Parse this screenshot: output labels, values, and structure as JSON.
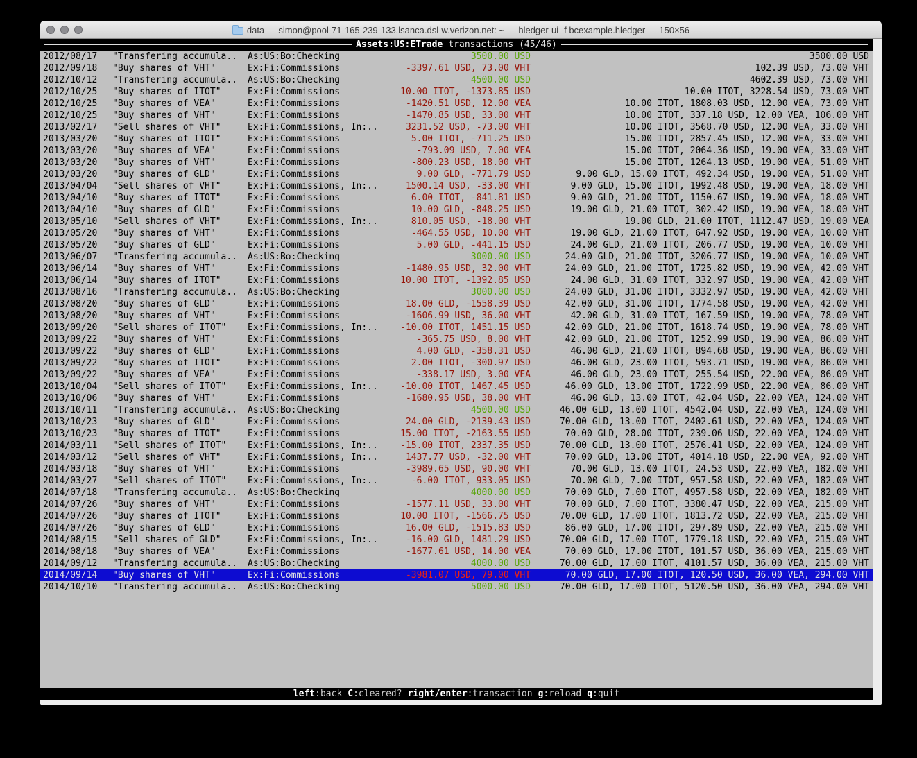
{
  "colors": {
    "terminal_background": "#c1c1c1",
    "negative_amount": "#961408",
    "positive_amount": "#55a302",
    "selection_background": "#0d0cd1",
    "selection_negative_amount": "#ee2211",
    "bar_background": "#000000",
    "bar_text": "#e6e6e6"
  },
  "window": {
    "title": "data — simon@pool-71-165-239-133.lsanca.dsl-w.verizon.net: ~ — hledger-ui -f bcexample.hledger — 150×56",
    "folder_icon": "folder-icon",
    "traffic_lights": [
      "close",
      "minimize",
      "zoom"
    ]
  },
  "tui_header": {
    "account": "Assets:US:ETrade",
    "suffix": "transactions (45/46)"
  },
  "statusbar": {
    "hints": [
      {
        "key": "left",
        "desc": ":back"
      },
      {
        "key": "C",
        "desc": ":cleared?"
      },
      {
        "key": "right/enter",
        "desc": ":transaction"
      },
      {
        "key": "g",
        "desc": ":reload"
      },
      {
        "key": "q",
        "desc": ":quit"
      }
    ]
  },
  "transactions": [
    {
      "date": "2012/08/17",
      "description": "\"Transfering accumula..",
      "account": "As:US:Bo:Checking",
      "change": "3500.00 USD",
      "change_color": "green",
      "balance": "3500.00 USD",
      "selected": false
    },
    {
      "date": "2012/09/18",
      "description": "\"Buy shares of VHT\"",
      "account": "Ex:Fi:Commissions",
      "change": "-3397.61 USD, 73.00 VHT",
      "change_color": "red",
      "balance": "102.39 USD, 73.00 VHT",
      "selected": false
    },
    {
      "date": "2012/10/12",
      "description": "\"Transfering accumula..",
      "account": "As:US:Bo:Checking",
      "change": "4500.00 USD",
      "change_color": "green",
      "balance": "4602.39 USD, 73.00 VHT",
      "selected": false
    },
    {
      "date": "2012/10/25",
      "description": "\"Buy shares of ITOT\"",
      "account": "Ex:Fi:Commissions",
      "change": "10.00 ITOT, -1373.85 USD",
      "change_color": "red",
      "balance": "10.00 ITOT, 3228.54 USD, 73.00 VHT",
      "selected": false
    },
    {
      "date": "2012/10/25",
      "description": "\"Buy shares of VEA\"",
      "account": "Ex:Fi:Commissions",
      "change": "-1420.51 USD, 12.00 VEA",
      "change_color": "red",
      "balance": "10.00 ITOT, 1808.03 USD, 12.00 VEA, 73.00 VHT",
      "selected": false
    },
    {
      "date": "2012/10/25",
      "description": "\"Buy shares of VHT\"",
      "account": "Ex:Fi:Commissions",
      "change": "-1470.85 USD, 33.00 VHT",
      "change_color": "red",
      "balance": "10.00 ITOT, 337.18 USD, 12.00 VEA, 106.00 VHT",
      "selected": false
    },
    {
      "date": "2013/02/17",
      "description": "\"Sell shares of VHT\"",
      "account": "Ex:Fi:Commissions, In:..",
      "change": "3231.52 USD, -73.00 VHT",
      "change_color": "red",
      "balance": "10.00 ITOT, 3568.70 USD, 12.00 VEA, 33.00 VHT",
      "selected": false
    },
    {
      "date": "2013/03/20",
      "description": "\"Buy shares of ITOT\"",
      "account": "Ex:Fi:Commissions",
      "change": "5.00 ITOT, -711.25 USD",
      "change_color": "red",
      "balance": "15.00 ITOT, 2857.45 USD, 12.00 VEA, 33.00 VHT",
      "selected": false
    },
    {
      "date": "2013/03/20",
      "description": "\"Buy shares of VEA\"",
      "account": "Ex:Fi:Commissions",
      "change": "-793.09 USD, 7.00 VEA",
      "change_color": "red",
      "balance": "15.00 ITOT, 2064.36 USD, 19.00 VEA, 33.00 VHT",
      "selected": false
    },
    {
      "date": "2013/03/20",
      "description": "\"Buy shares of VHT\"",
      "account": "Ex:Fi:Commissions",
      "change": "-800.23 USD, 18.00 VHT",
      "change_color": "red",
      "balance": "15.00 ITOT, 1264.13 USD, 19.00 VEA, 51.00 VHT",
      "selected": false
    },
    {
      "date": "2013/03/20",
      "description": "\"Buy shares of GLD\"",
      "account": "Ex:Fi:Commissions",
      "change": "9.00 GLD, -771.79 USD",
      "change_color": "red",
      "balance": "9.00 GLD, 15.00 ITOT, 492.34 USD, 19.00 VEA, 51.00 VHT",
      "selected": false
    },
    {
      "date": "2013/04/04",
      "description": "\"Sell shares of VHT\"",
      "account": "Ex:Fi:Commissions, In:..",
      "change": "1500.14 USD, -33.00 VHT",
      "change_color": "red",
      "balance": "9.00 GLD, 15.00 ITOT, 1992.48 USD, 19.00 VEA, 18.00 VHT",
      "selected": false
    },
    {
      "date": "2013/04/10",
      "description": "\"Buy shares of ITOT\"",
      "account": "Ex:Fi:Commissions",
      "change": "6.00 ITOT, -841.81 USD",
      "change_color": "red",
      "balance": "9.00 GLD, 21.00 ITOT, 1150.67 USD, 19.00 VEA, 18.00 VHT",
      "selected": false
    },
    {
      "date": "2013/04/10",
      "description": "\"Buy shares of GLD\"",
      "account": "Ex:Fi:Commissions",
      "change": "10.00 GLD, -848.25 USD",
      "change_color": "red",
      "balance": "19.00 GLD, 21.00 ITOT, 302.42 USD, 19.00 VEA, 18.00 VHT",
      "selected": false
    },
    {
      "date": "2013/05/10",
      "description": "\"Sell shares of VHT\"",
      "account": "Ex:Fi:Commissions, In:..",
      "change": "810.05 USD, -18.00 VHT",
      "change_color": "red",
      "balance": "19.00 GLD, 21.00 ITOT, 1112.47 USD, 19.00 VEA",
      "selected": false
    },
    {
      "date": "2013/05/20",
      "description": "\"Buy shares of VHT\"",
      "account": "Ex:Fi:Commissions",
      "change": "-464.55 USD, 10.00 VHT",
      "change_color": "red",
      "balance": "19.00 GLD, 21.00 ITOT, 647.92 USD, 19.00 VEA, 10.00 VHT",
      "selected": false
    },
    {
      "date": "2013/05/20",
      "description": "\"Buy shares of GLD\"",
      "account": "Ex:Fi:Commissions",
      "change": "5.00 GLD, -441.15 USD",
      "change_color": "red",
      "balance": "24.00 GLD, 21.00 ITOT, 206.77 USD, 19.00 VEA, 10.00 VHT",
      "selected": false
    },
    {
      "date": "2013/06/07",
      "description": "\"Transfering accumula..",
      "account": "As:US:Bo:Checking",
      "change": "3000.00 USD",
      "change_color": "green",
      "balance": "24.00 GLD, 21.00 ITOT, 3206.77 USD, 19.00 VEA, 10.00 VHT",
      "selected": false
    },
    {
      "date": "2013/06/14",
      "description": "\"Buy shares of VHT\"",
      "account": "Ex:Fi:Commissions",
      "change": "-1480.95 USD, 32.00 VHT",
      "change_color": "red",
      "balance": "24.00 GLD, 21.00 ITOT, 1725.82 USD, 19.00 VEA, 42.00 VHT",
      "selected": false
    },
    {
      "date": "2013/06/14",
      "description": "\"Buy shares of ITOT\"",
      "account": "Ex:Fi:Commissions",
      "change": "10.00 ITOT, -1392.85 USD",
      "change_color": "red",
      "balance": "24.00 GLD, 31.00 ITOT, 332.97 USD, 19.00 VEA, 42.00 VHT",
      "selected": false
    },
    {
      "date": "2013/08/16",
      "description": "\"Transfering accumula..",
      "account": "As:US:Bo:Checking",
      "change": "3000.00 USD",
      "change_color": "green",
      "balance": "24.00 GLD, 31.00 ITOT, 3332.97 USD, 19.00 VEA, 42.00 VHT",
      "selected": false
    },
    {
      "date": "2013/08/20",
      "description": "\"Buy shares of GLD\"",
      "account": "Ex:Fi:Commissions",
      "change": "18.00 GLD, -1558.39 USD",
      "change_color": "red",
      "balance": "42.00 GLD, 31.00 ITOT, 1774.58 USD, 19.00 VEA, 42.00 VHT",
      "selected": false
    },
    {
      "date": "2013/08/20",
      "description": "\"Buy shares of VHT\"",
      "account": "Ex:Fi:Commissions",
      "change": "-1606.99 USD, 36.00 VHT",
      "change_color": "red",
      "balance": "42.00 GLD, 31.00 ITOT, 167.59 USD, 19.00 VEA, 78.00 VHT",
      "selected": false
    },
    {
      "date": "2013/09/20",
      "description": "\"Sell shares of ITOT\"",
      "account": "Ex:Fi:Commissions, In:..",
      "change": "-10.00 ITOT, 1451.15 USD",
      "change_color": "red",
      "balance": "42.00 GLD, 21.00 ITOT, 1618.74 USD, 19.00 VEA, 78.00 VHT",
      "selected": false
    },
    {
      "date": "2013/09/22",
      "description": "\"Buy shares of VHT\"",
      "account": "Ex:Fi:Commissions",
      "change": "-365.75 USD, 8.00 VHT",
      "change_color": "red",
      "balance": "42.00 GLD, 21.00 ITOT, 1252.99 USD, 19.00 VEA, 86.00 VHT",
      "selected": false
    },
    {
      "date": "2013/09/22",
      "description": "\"Buy shares of GLD\"",
      "account": "Ex:Fi:Commissions",
      "change": "4.00 GLD, -358.31 USD",
      "change_color": "red",
      "balance": "46.00 GLD, 21.00 ITOT, 894.68 USD, 19.00 VEA, 86.00 VHT",
      "selected": false
    },
    {
      "date": "2013/09/22",
      "description": "\"Buy shares of ITOT\"",
      "account": "Ex:Fi:Commissions",
      "change": "2.00 ITOT, -300.97 USD",
      "change_color": "red",
      "balance": "46.00 GLD, 23.00 ITOT, 593.71 USD, 19.00 VEA, 86.00 VHT",
      "selected": false
    },
    {
      "date": "2013/09/22",
      "description": "\"Buy shares of VEA\"",
      "account": "Ex:Fi:Commissions",
      "change": "-338.17 USD, 3.00 VEA",
      "change_color": "red",
      "balance": "46.00 GLD, 23.00 ITOT, 255.54 USD, 22.00 VEA, 86.00 VHT",
      "selected": false
    },
    {
      "date": "2013/10/04",
      "description": "\"Sell shares of ITOT\"",
      "account": "Ex:Fi:Commissions, In:..",
      "change": "-10.00 ITOT, 1467.45 USD",
      "change_color": "red",
      "balance": "46.00 GLD, 13.00 ITOT, 1722.99 USD, 22.00 VEA, 86.00 VHT",
      "selected": false
    },
    {
      "date": "2013/10/06",
      "description": "\"Buy shares of VHT\"",
      "account": "Ex:Fi:Commissions",
      "change": "-1680.95 USD, 38.00 VHT",
      "change_color": "red",
      "balance": "46.00 GLD, 13.00 ITOT, 42.04 USD, 22.00 VEA, 124.00 VHT",
      "selected": false
    },
    {
      "date": "2013/10/11",
      "description": "\"Transfering accumula..",
      "account": "As:US:Bo:Checking",
      "change": "4500.00 USD",
      "change_color": "green",
      "balance": "46.00 GLD, 13.00 ITOT, 4542.04 USD, 22.00 VEA, 124.00 VHT",
      "selected": false
    },
    {
      "date": "2013/10/23",
      "description": "\"Buy shares of GLD\"",
      "account": "Ex:Fi:Commissions",
      "change": "24.00 GLD, -2139.43 USD",
      "change_color": "red",
      "balance": "70.00 GLD, 13.00 ITOT, 2402.61 USD, 22.00 VEA, 124.00 VHT",
      "selected": false
    },
    {
      "date": "2013/10/23",
      "description": "\"Buy shares of ITOT\"",
      "account": "Ex:Fi:Commissions",
      "change": "15.00 ITOT, -2163.55 USD",
      "change_color": "red",
      "balance": "70.00 GLD, 28.00 ITOT, 239.06 USD, 22.00 VEA, 124.00 VHT",
      "selected": false
    },
    {
      "date": "2014/03/11",
      "description": "\"Sell shares of ITOT\"",
      "account": "Ex:Fi:Commissions, In:..",
      "change": "-15.00 ITOT, 2337.35 USD",
      "change_color": "red",
      "balance": "70.00 GLD, 13.00 ITOT, 2576.41 USD, 22.00 VEA, 124.00 VHT",
      "selected": false
    },
    {
      "date": "2014/03/12",
      "description": "\"Sell shares of VHT\"",
      "account": "Ex:Fi:Commissions, In:..",
      "change": "1437.77 USD, -32.00 VHT",
      "change_color": "red",
      "balance": "70.00 GLD, 13.00 ITOT, 4014.18 USD, 22.00 VEA, 92.00 VHT",
      "selected": false
    },
    {
      "date": "2014/03/18",
      "description": "\"Buy shares of VHT\"",
      "account": "Ex:Fi:Commissions",
      "change": "-3989.65 USD, 90.00 VHT",
      "change_color": "red",
      "balance": "70.00 GLD, 13.00 ITOT, 24.53 USD, 22.00 VEA, 182.00 VHT",
      "selected": false
    },
    {
      "date": "2014/03/27",
      "description": "\"Sell shares of ITOT\"",
      "account": "Ex:Fi:Commissions, In:..",
      "change": "-6.00 ITOT, 933.05 USD",
      "change_color": "red",
      "balance": "70.00 GLD, 7.00 ITOT, 957.58 USD, 22.00 VEA, 182.00 VHT",
      "selected": false
    },
    {
      "date": "2014/07/18",
      "description": "\"Transfering accumula..",
      "account": "As:US:Bo:Checking",
      "change": "4000.00 USD",
      "change_color": "green",
      "balance": "70.00 GLD, 7.00 ITOT, 4957.58 USD, 22.00 VEA, 182.00 VHT",
      "selected": false
    },
    {
      "date": "2014/07/26",
      "description": "\"Buy shares of VHT\"",
      "account": "Ex:Fi:Commissions",
      "change": "-1577.11 USD, 33.00 VHT",
      "change_color": "red",
      "balance": "70.00 GLD, 7.00 ITOT, 3380.47 USD, 22.00 VEA, 215.00 VHT",
      "selected": false
    },
    {
      "date": "2014/07/26",
      "description": "\"Buy shares of ITOT\"",
      "account": "Ex:Fi:Commissions",
      "change": "10.00 ITOT, -1566.75 USD",
      "change_color": "red",
      "balance": "70.00 GLD, 17.00 ITOT, 1813.72 USD, 22.00 VEA, 215.00 VHT",
      "selected": false
    },
    {
      "date": "2014/07/26",
      "description": "\"Buy shares of GLD\"",
      "account": "Ex:Fi:Commissions",
      "change": "16.00 GLD, -1515.83 USD",
      "change_color": "red",
      "balance": "86.00 GLD, 17.00 ITOT, 297.89 USD, 22.00 VEA, 215.00 VHT",
      "selected": false
    },
    {
      "date": "2014/08/15",
      "description": "\"Sell shares of GLD\"",
      "account": "Ex:Fi:Commissions, In:..",
      "change": "-16.00 GLD, 1481.29 USD",
      "change_color": "red",
      "balance": "70.00 GLD, 17.00 ITOT, 1779.18 USD, 22.00 VEA, 215.00 VHT",
      "selected": false
    },
    {
      "date": "2014/08/18",
      "description": "\"Buy shares of VEA\"",
      "account": "Ex:Fi:Commissions",
      "change": "-1677.61 USD, 14.00 VEA",
      "change_color": "red",
      "balance": "70.00 GLD, 17.00 ITOT, 101.57 USD, 36.00 VEA, 215.00 VHT",
      "selected": false
    },
    {
      "date": "2014/09/12",
      "description": "\"Transfering accumula..",
      "account": "As:US:Bo:Checking",
      "change": "4000.00 USD",
      "change_color": "green",
      "balance": "70.00 GLD, 17.00 ITOT, 4101.57 USD, 36.00 VEA, 215.00 VHT",
      "selected": false
    },
    {
      "date": "2014/09/14",
      "description": "\"Buy shares of VHT\"",
      "account": "Ex:Fi:Commissions",
      "change": "-3981.07 USD, 79.00 VHT",
      "change_color": "red",
      "balance": "70.00 GLD, 17.00 ITOT, 120.50 USD, 36.00 VEA, 294.00 VHT",
      "selected": true
    },
    {
      "date": "2014/10/10",
      "description": "\"Transfering accumula..",
      "account": "As:US:Bo:Checking",
      "change": "5000.00 USD",
      "change_color": "green",
      "balance": "70.00 GLD, 17.00 ITOT, 5120.50 USD, 36.00 VEA, 294.00 VHT",
      "selected": false
    }
  ]
}
